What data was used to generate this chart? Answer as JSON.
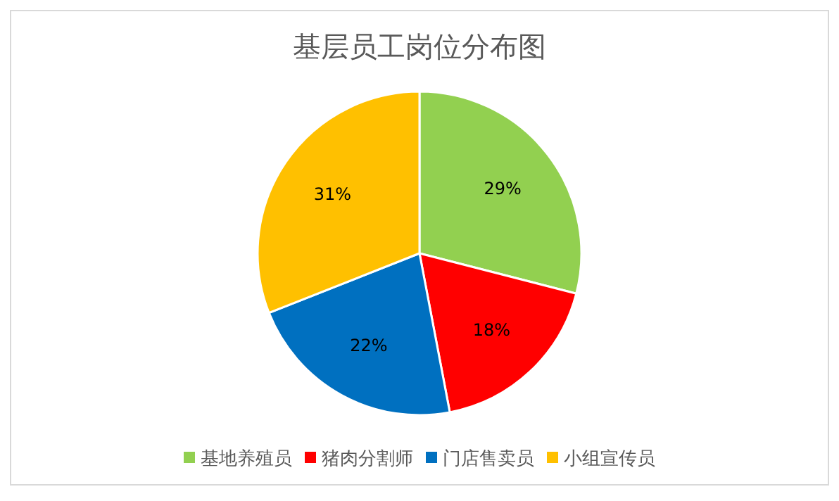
{
  "chart_data": {
    "type": "pie",
    "title": "基层员工岗位分布图",
    "categories": [
      "基地养殖员",
      "猪肉分割师",
      "门店售卖员",
      "小组宣传员"
    ],
    "values": [
      29,
      18,
      22,
      31
    ],
    "colors": [
      "#92d050",
      "#ff0000",
      "#0070c0",
      "#ffc000"
    ],
    "value_labels": [
      "29%",
      "18%",
      "22%",
      "31%"
    ],
    "legend": "bottom"
  }
}
